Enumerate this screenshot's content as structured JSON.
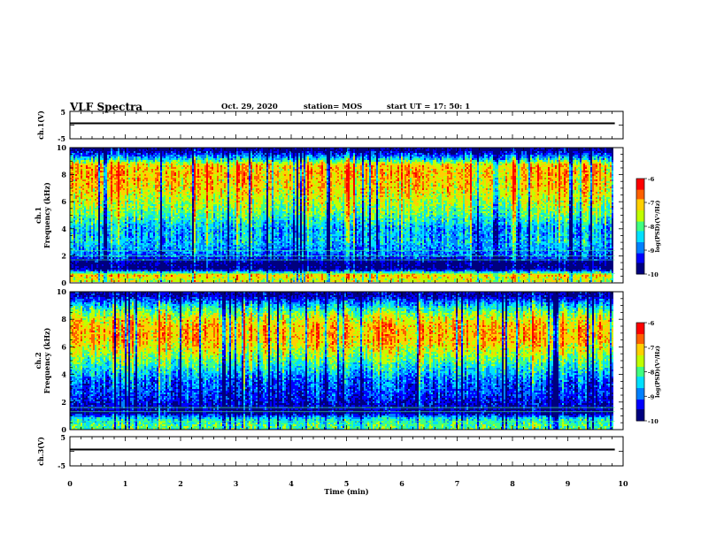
{
  "header": {
    "title": "VLF Spectra",
    "date": "Oct. 29, 2020",
    "station": "station= MOS",
    "start": "start  UT =   17: 50: 1"
  },
  "chart_data": [
    {
      "type": "line",
      "ylabel": "ch.1(V)",
      "ylim": [
        -5,
        5
      ],
      "yticks": [
        "5",
        "-5"
      ],
      "x": [
        0,
        9.85
      ],
      "series": [
        {
          "values": [
            0,
            0
          ]
        }
      ]
    },
    {
      "type": "heatmap",
      "ylabel": "Frequency (kHz)",
      "channel_label": "ch.1",
      "ylim": [
        0,
        10
      ],
      "yticks": [
        "0",
        "2",
        "4",
        "6",
        "8",
        "10"
      ],
      "xlim": [
        0,
        10
      ],
      "data_extent_x": [
        0,
        9.85
      ],
      "colorbar": {
        "label": "log(PSD)(V²/Hz)",
        "range": [
          -10,
          -6
        ],
        "ticks": [
          "-6",
          "-7",
          "-8",
          "-9",
          "-10"
        ]
      },
      "band_profile": [
        {
          "f": 0.25,
          "level": -7.5
        },
        {
          "f": 0.6,
          "level": -7.0
        },
        {
          "f": 1.0,
          "level": -9.8
        },
        {
          "f": 1.5,
          "level": -9.8
        },
        {
          "f": 2.0,
          "level": -9.0
        },
        {
          "f": 2.5,
          "level": -8.8
        },
        {
          "f": 3.0,
          "level": -8.6
        },
        {
          "f": 4.0,
          "level": -8.7
        },
        {
          "f": 5.0,
          "level": -8.0
        },
        {
          "f": 6.0,
          "level": -7.6
        },
        {
          "f": 7.0,
          "level": -7.2
        },
        {
          "f": 8.0,
          "level": -7.0
        },
        {
          "f": 8.7,
          "level": -7.1
        },
        {
          "f": 9.2,
          "level": -8.6
        },
        {
          "f": 9.8,
          "level": -9.8
        }
      ],
      "lines_khz": [
        0.7,
        1.7,
        2.0,
        2.4
      ]
    },
    {
      "type": "heatmap",
      "ylabel": "Frequency (kHz)",
      "channel_label": "ch.2",
      "ylim": [
        0,
        10
      ],
      "yticks": [
        "0",
        "2",
        "4",
        "6",
        "8",
        "10"
      ],
      "xlim": [
        0,
        10
      ],
      "data_extent_x": [
        0,
        9.85
      ],
      "colorbar": {
        "label": "log(PSD)(V²/Hz)",
        "range": [
          -10,
          -6
        ],
        "ticks": [
          "-6",
          "-7",
          "-8",
          "-9",
          "-10"
        ]
      },
      "band_profile": [
        {
          "f": 0.3,
          "level": -8.0
        },
        {
          "f": 0.8,
          "level": -8.4
        },
        {
          "f": 1.2,
          "level": -9.7
        },
        {
          "f": 1.8,
          "level": -9.5
        },
        {
          "f": 2.5,
          "level": -9.2
        },
        {
          "f": 3.5,
          "level": -9.0
        },
        {
          "f": 4.5,
          "level": -8.3
        },
        {
          "f": 5.5,
          "level": -7.6
        },
        {
          "f": 6.5,
          "level": -7.0
        },
        {
          "f": 7.5,
          "level": -7.0
        },
        {
          "f": 8.3,
          "level": -7.6
        },
        {
          "f": 9.0,
          "level": -8.5
        },
        {
          "f": 9.7,
          "level": -9.6
        }
      ],
      "lines_khz": [
        0.6,
        1.3,
        1.6
      ]
    },
    {
      "type": "line",
      "ylabel": "ch.3(V)",
      "ylim": [
        -5,
        5
      ],
      "yticks": [
        "5",
        "-5"
      ],
      "x": [
        0,
        9.85
      ],
      "series": [
        {
          "values": [
            0,
            0
          ]
        }
      ]
    }
  ],
  "xaxis": {
    "label": "Time (min)",
    "ticks": [
      0,
      1,
      2,
      3,
      4,
      5,
      6,
      7,
      8,
      9,
      10
    ],
    "tick_labels": [
      "0",
      "1",
      "2",
      "3",
      "4",
      "5",
      "6",
      "7",
      "8",
      "9",
      "10"
    ]
  },
  "colors": {
    "colormap": [
      "#00007f",
      "#0000ff",
      "#0080ff",
      "#00e0ff",
      "#40ff80",
      "#c0ff00",
      "#ffd000",
      "#ff6000",
      "#ff0000"
    ],
    "axis": "#000000",
    "background": "#ffffff"
  }
}
